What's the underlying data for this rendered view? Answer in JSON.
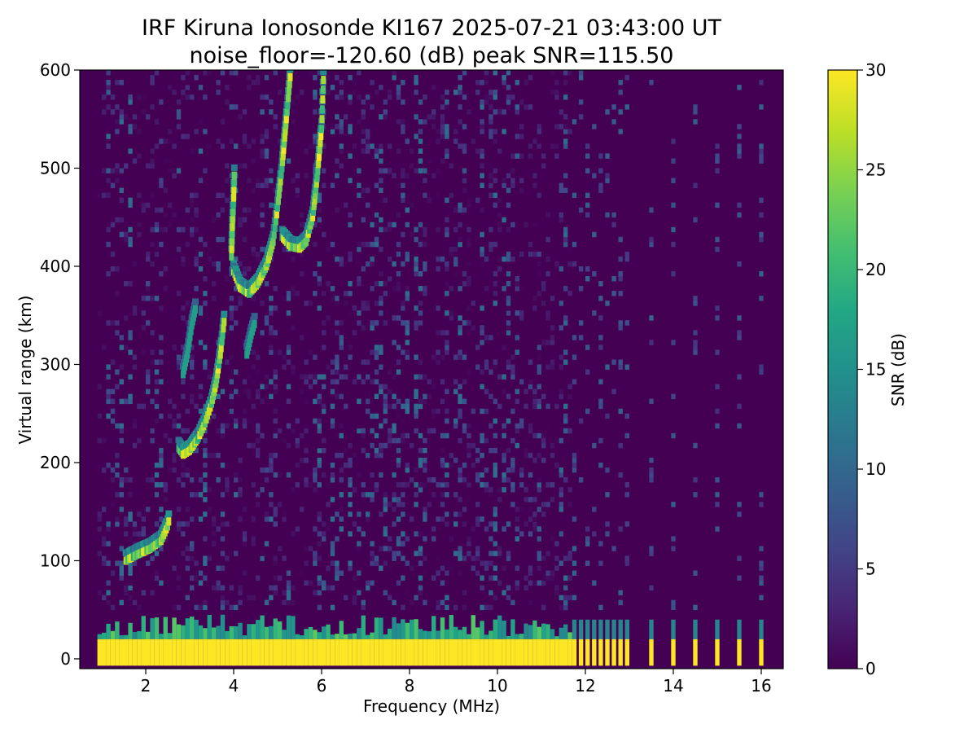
{
  "chart_data": {
    "type": "heatmap",
    "title": "IRF Kiruna Ionosonde KI167 2025-07-21 03:43:00  UT",
    "subtitle": "noise_floor=-120.60 (dB) peak SNR=115.50",
    "xlabel": "Frequency (MHz)",
    "ylabel": "Virtual range (km)",
    "xlim": [
      0.5,
      16.5
    ],
    "ylim": [
      -10,
      600
    ],
    "xticks": [
      2,
      4,
      6,
      8,
      10,
      12,
      14,
      16
    ],
    "yticks": [
      0,
      100,
      200,
      300,
      400,
      500,
      600
    ],
    "colorbar": {
      "label": "SNR (dB)",
      "range": [
        0,
        30
      ],
      "ticks": [
        0,
        5,
        10,
        15,
        20,
        25,
        30
      ],
      "colormap": "viridis"
    },
    "noise_floor_db": -120.6,
    "peak_snr_db": 115.5,
    "sweep_start_mhz": 0.95,
    "dense_sweep_end_mhz": 11.7,
    "sparse_frequencies_mhz": [
      11.75,
      11.9,
      12.05,
      12.2,
      12.35,
      12.5,
      12.65,
      12.8,
      12.95,
      13.5,
      14.0,
      14.5,
      15.0,
      15.5,
      16.0
    ],
    "ground_clutter_range_km": [
      -10,
      45
    ],
    "traces": [
      {
        "layer": "E",
        "points": [
          [
            1.55,
            100
          ],
          [
            1.8,
            106
          ],
          [
            2.1,
            112
          ],
          [
            2.35,
            120
          ],
          [
            2.5,
            135
          ],
          [
            2.55,
            145
          ]
        ]
      },
      {
        "layer": "F1",
        "points": [
          [
            2.75,
            215
          ],
          [
            2.85,
            208
          ],
          [
            3.0,
            212
          ],
          [
            3.2,
            225
          ],
          [
            3.35,
            240
          ],
          [
            3.5,
            260
          ],
          [
            3.6,
            280
          ],
          [
            3.7,
            310
          ],
          [
            3.8,
            350
          ]
        ]
      },
      {
        "layer": "F1-x",
        "points": [
          [
            2.85,
            290
          ],
          [
            2.95,
            310
          ],
          [
            3.05,
            340
          ],
          [
            3.15,
            360
          ]
        ]
      },
      {
        "layer": "F2",
        "points": [
          [
            4.0,
            395
          ],
          [
            4.15,
            378
          ],
          [
            4.35,
            372
          ],
          [
            4.55,
            382
          ],
          [
            4.75,
            400
          ],
          [
            4.9,
            425
          ],
          [
            5.0,
            460
          ],
          [
            5.1,
            500
          ],
          [
            5.2,
            550
          ],
          [
            5.3,
            600
          ]
        ]
      },
      {
        "layer": "F2-x",
        "points": [
          [
            5.1,
            430
          ],
          [
            5.3,
            420
          ],
          [
            5.5,
            418
          ],
          [
            5.65,
            425
          ],
          [
            5.8,
            450
          ],
          [
            5.9,
            490
          ],
          [
            6.0,
            540
          ],
          [
            6.05,
            600
          ]
        ]
      },
      {
        "layer": "F2-lead",
        "points": [
          [
            3.95,
            410
          ],
          [
            3.97,
            440
          ],
          [
            4.0,
            470
          ],
          [
            4.02,
            500
          ]
        ]
      },
      {
        "layer": "faint",
        "points": [
          [
            4.3,
            310
          ],
          [
            4.4,
            330
          ],
          [
            4.5,
            345
          ]
        ]
      }
    ]
  }
}
